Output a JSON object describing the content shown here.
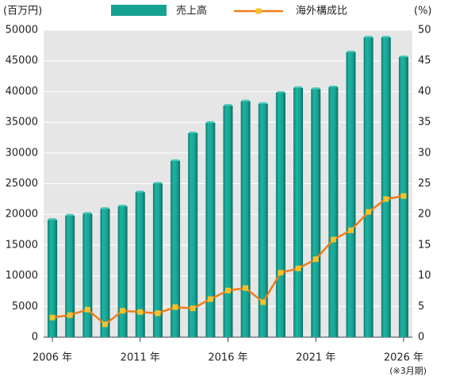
{
  "chart_data": {
    "type": "bar-line",
    "y_label": "(百万円)",
    "y2_label": "(%)",
    "annotation": "(※3月期)",
    "categories": [
      "2006 年",
      null,
      null,
      null,
      null,
      "2011 年",
      null,
      null,
      null,
      null,
      "2016 年",
      null,
      null,
      null,
      null,
      "2021 年",
      null,
      null,
      null,
      null,
      "2026 年"
    ],
    "series": [
      {
        "name": "売上高",
        "type": "bar",
        "color": "#16a293",
        "values": [
          19100,
          19800,
          20100,
          20900,
          21300,
          23600,
          25000,
          28700,
          33200,
          34900,
          37700,
          38400,
          38000,
          39800,
          40600,
          40400,
          40700,
          46400,
          48800,
          48800,
          45600
        ]
      },
      {
        "name": "海外構成比",
        "type": "line",
        "axis": "y2",
        "color": "#f07e1c",
        "marker_color": "#f5c22b",
        "values": [
          3.2,
          3.6,
          4.5,
          2.1,
          4.3,
          4.1,
          3.9,
          4.9,
          4.7,
          6.2,
          7.6,
          8.0,
          5.7,
          10.5,
          11.2,
          12.7,
          15.9,
          17.4,
          20.4,
          22.5,
          23.0
        ]
      }
    ],
    "ylim": [
      0,
      50000
    ],
    "yticks": [
      0,
      5000,
      10000,
      15000,
      20000,
      25000,
      30000,
      35000,
      40000,
      45000,
      50000
    ],
    "y2lim": [
      0,
      50
    ],
    "y2ticks": [
      0,
      5,
      10,
      15,
      20,
      25,
      30,
      35,
      40,
      45,
      50
    ],
    "grid": true,
    "legend": "top"
  }
}
